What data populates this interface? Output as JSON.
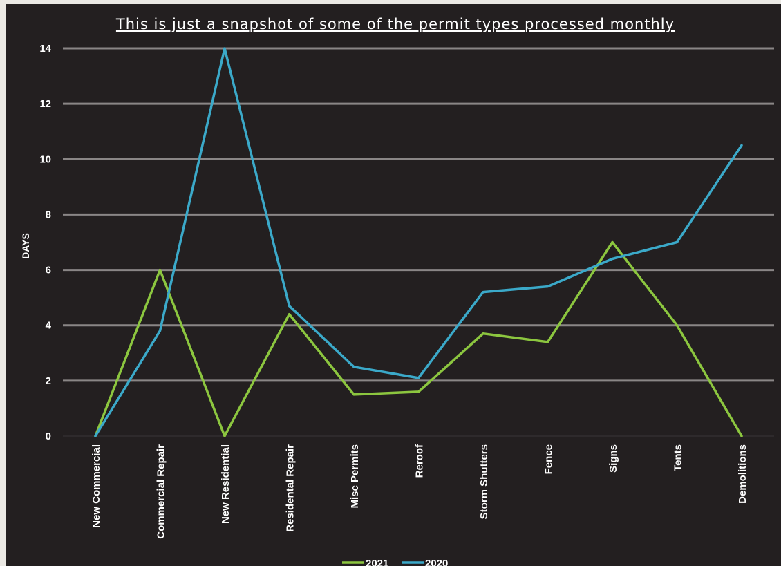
{
  "chart_data": {
    "type": "line",
    "title": "This is just a snapshot of some of the permit types processed monthly",
    "xlabel": "",
    "ylabel": "DAYS",
    "ylim": [
      0,
      14
    ],
    "yticks": [
      0,
      2,
      4,
      6,
      8,
      10,
      12,
      14
    ],
    "grid": true,
    "legend_position": "bottom",
    "categories": [
      "New Commercial",
      "Commercial Repair",
      "New Residential",
      "Residental Repair",
      "Misc Permits",
      "Reroof",
      "Storm Shutters",
      "Fence",
      "Signs",
      "Tents",
      "Demolitions"
    ],
    "series": [
      {
        "name": "2021",
        "color": "#8cc63f",
        "values": [
          0,
          6,
          0,
          4.4,
          1.5,
          1.6,
          3.7,
          3.4,
          7,
          4,
          0
        ]
      },
      {
        "name": "2020",
        "color": "#3ba9c9",
        "values": [
          0,
          3.8,
          14,
          4.7,
          2.5,
          2.1,
          5.2,
          5.4,
          6.4,
          7,
          10.5
        ]
      }
    ]
  },
  "colors": {
    "background": "#231f20",
    "gridline": "#8a8686",
    "text": "#ffffff"
  }
}
